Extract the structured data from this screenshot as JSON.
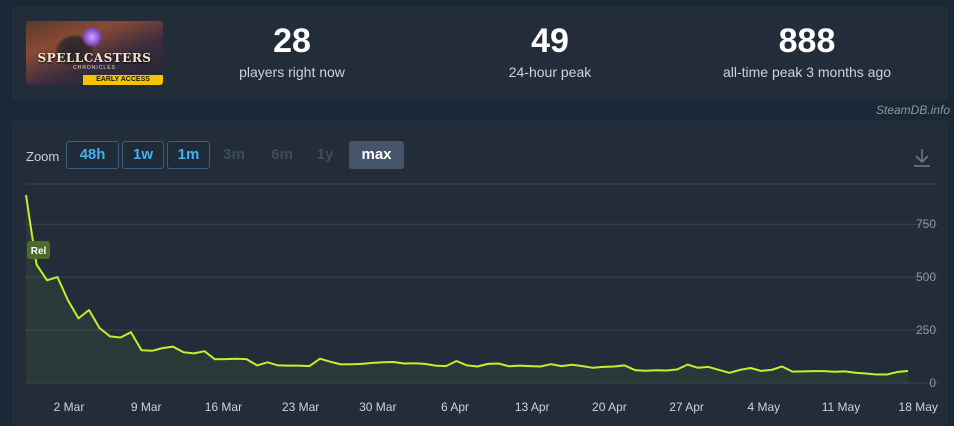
{
  "game": {
    "capsule_title": "SPELLCASTERS",
    "capsule_subtitle": "CHRONICLES",
    "capsule_badge": "EARLY ACCESS"
  },
  "stats": [
    {
      "value": "28",
      "label": "players right now"
    },
    {
      "value": "49",
      "label": "24-hour peak"
    },
    {
      "value": "888",
      "label": "all-time peak 3 months ago"
    }
  ],
  "credit": "SteamDB.info",
  "zoom": {
    "label": "Zoom",
    "options": [
      {
        "label": "48h",
        "state": "enabled"
      },
      {
        "label": "1w",
        "state": "enabled"
      },
      {
        "label": "1m",
        "state": "enabled"
      },
      {
        "label": "3m",
        "state": "disabled"
      },
      {
        "label": "6m",
        "state": "disabled"
      },
      {
        "label": "1y",
        "state": "disabled"
      },
      {
        "label": "max",
        "state": "active"
      }
    ]
  },
  "colors": {
    "line": "#c2f02c",
    "grid": "#3a4552",
    "marker_bg": "#4c6a2a"
  },
  "chart_data": {
    "type": "line",
    "title": "",
    "xlabel": "",
    "ylabel": "",
    "ylim": [
      0,
      940
    ],
    "yticks": [
      0,
      250,
      500,
      750
    ],
    "xticks": [
      "2 Mar",
      "9 Mar",
      "16 Mar",
      "23 Mar",
      "30 Mar",
      "6 Apr",
      "13 Apr",
      "20 Apr",
      "27 Apr",
      "4 May",
      "11 May",
      "18 May"
    ],
    "annotation": {
      "label": "Rel",
      "x": 0
    },
    "x_unit": "days since release marker",
    "series": [
      {
        "name": "",
        "points": [
          [
            0,
            888
          ],
          [
            0.5,
            720
          ],
          [
            1,
            560
          ],
          [
            2,
            485
          ],
          [
            3,
            500
          ],
          [
            4,
            390
          ],
          [
            5,
            305
          ],
          [
            6,
            345
          ],
          [
            7,
            260
          ],
          [
            8,
            220
          ],
          [
            9,
            215
          ],
          [
            10,
            240
          ],
          [
            11,
            155
          ],
          [
            12,
            152
          ],
          [
            13,
            165
          ],
          [
            14,
            172
          ],
          [
            15,
            145
          ],
          [
            16,
            140
          ],
          [
            17,
            150
          ],
          [
            18,
            112
          ],
          [
            19,
            113
          ],
          [
            20,
            115
          ],
          [
            21,
            113
          ],
          [
            22,
            83
          ],
          [
            23,
            98
          ],
          [
            24,
            83
          ],
          [
            25,
            82
          ],
          [
            26,
            82
          ],
          [
            27,
            80
          ],
          [
            28,
            115
          ],
          [
            29,
            100
          ],
          [
            30,
            88
          ],
          [
            31,
            89
          ],
          [
            32,
            90
          ],
          [
            33,
            95
          ],
          [
            34,
            98
          ],
          [
            35,
            99
          ],
          [
            36,
            92
          ],
          [
            37,
            93
          ],
          [
            38,
            90
          ],
          [
            39,
            82
          ],
          [
            40,
            80
          ],
          [
            41,
            104
          ],
          [
            42,
            83
          ],
          [
            43,
            78
          ],
          [
            44,
            90
          ],
          [
            45,
            92
          ],
          [
            46,
            79
          ],
          [
            47,
            82
          ],
          [
            48,
            80
          ],
          [
            49,
            78
          ],
          [
            50,
            89
          ],
          [
            51,
            80
          ],
          [
            52,
            86
          ],
          [
            53,
            80
          ],
          [
            54,
            72
          ],
          [
            55,
            76
          ],
          [
            56,
            78
          ],
          [
            57,
            83
          ],
          [
            58,
            61
          ],
          [
            59,
            58
          ],
          [
            60,
            60
          ],
          [
            61,
            59
          ],
          [
            62,
            64
          ],
          [
            63,
            87
          ],
          [
            64,
            72
          ],
          [
            65,
            76
          ],
          [
            66,
            62
          ],
          [
            67,
            48
          ],
          [
            68,
            62
          ],
          [
            69,
            71
          ],
          [
            70,
            57
          ],
          [
            71,
            62
          ],
          [
            72,
            78
          ],
          [
            73,
            54
          ],
          [
            74,
            55
          ],
          [
            75,
            56
          ],
          [
            76,
            56
          ],
          [
            77,
            53
          ],
          [
            78,
            55
          ],
          [
            79,
            48
          ],
          [
            80,
            45
          ],
          [
            81,
            40
          ],
          [
            82,
            40
          ],
          [
            83,
            52
          ],
          [
            84,
            57
          ]
        ]
      }
    ]
  }
}
